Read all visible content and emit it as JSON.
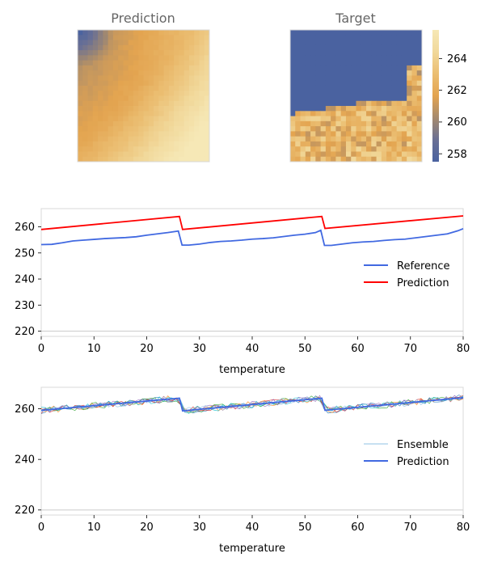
{
  "colors": {
    "reference": "#4169e1",
    "prediction_red": "#ff0000",
    "prediction_blue": "#4169e1",
    "ensemble": [
      "#1f77b4",
      "#ff7f0e",
      "#2ca02c",
      "#d62728",
      "#9467bd",
      "#17becf",
      "#8fc1e3"
    ],
    "colormap": [
      "#4a62a0",
      "#6a7094",
      "#a58a6e",
      "#e3a450",
      "#ebbe72",
      "#f1d89a",
      "#f6e8b6"
    ],
    "frame": "#d8d8d8",
    "baseline": "#cccccc"
  },
  "chart_data": [
    {
      "type": "heatmap",
      "title": "Prediction",
      "grid_size": 26,
      "value_range": [
        257.5,
        265.8
      ],
      "pattern": "smooth field, warm orange center, darker blue-grey in top-left corner, pale yellow toward right and bottom-right"
    },
    {
      "type": "heatmap",
      "title": "Target",
      "grid_size": 26,
      "value_range": [
        257.5,
        265.8
      ],
      "pattern": "large uniform blue region (~257.5) covering upper two-thirds, warm patchy orange/yellow values along bottom and right edges"
    },
    {
      "type": "colorbar",
      "ticks": [
        "258",
        "260",
        "262",
        "264"
      ],
      "range": [
        257.5,
        265.8
      ]
    },
    {
      "type": "line",
      "xlabel": "temperature",
      "ylabel": "",
      "xlim": [
        0,
        80
      ],
      "ylim": [
        218,
        267
      ],
      "xticks": [
        "0",
        "10",
        "20",
        "30",
        "40",
        "50",
        "60",
        "70",
        "80"
      ],
      "yticks": [
        "220",
        "230",
        "240",
        "250",
        "260"
      ],
      "series": [
        {
          "name": "Reference",
          "x": [
            0,
            2,
            4,
            6,
            8,
            10,
            12,
            14,
            16,
            18,
            20,
            22,
            24,
            26,
            26.7,
            28,
            30,
            32,
            34,
            36,
            38,
            40,
            42,
            44,
            46,
            48,
            50,
            52,
            53,
            53.7,
            55,
            57,
            59,
            61,
            63,
            65,
            67,
            69,
            71,
            73,
            75,
            77,
            79,
            80
          ],
          "y": [
            253.2,
            253.3,
            253.9,
            254.6,
            254.9,
            255.2,
            255.5,
            255.7,
            255.9,
            256.2,
            256.8,
            257.3,
            257.8,
            258.4,
            253.0,
            253.0,
            253.4,
            254.0,
            254.4,
            254.6,
            254.9,
            255.3,
            255.5,
            255.8,
            256.3,
            256.8,
            257.2,
            257.8,
            258.7,
            252.9,
            252.9,
            253.4,
            253.9,
            254.2,
            254.4,
            254.8,
            255.1,
            255.3,
            255.8,
            256.3,
            256.8,
            257.3,
            258.5,
            259.3
          ]
        },
        {
          "name": "Prediction",
          "x": [
            0,
            26.2,
            26.8,
            53.2,
            53.8,
            80
          ],
          "y": [
            259.0,
            264.0,
            259.0,
            264.0,
            259.4,
            264.2
          ]
        }
      ],
      "legend": "right"
    },
    {
      "type": "line",
      "xlabel": "temperature",
      "ylabel": "",
      "xlim": [
        0,
        80
      ],
      "ylim": [
        218,
        268.5
      ],
      "xticks": [
        "0",
        "10",
        "20",
        "30",
        "40",
        "50",
        "60",
        "70",
        "80"
      ],
      "yticks": [
        "220",
        "240",
        "260"
      ],
      "series": [
        {
          "name": "Ensemble",
          "members": 7,
          "description": "noisy thin member lines scattered around the prediction curve, spread about ±1.5",
          "x": [
            0,
            26.2,
            26.8,
            53.2,
            53.8,
            80
          ],
          "y": [
            259.4,
            264.2,
            259.2,
            264.2,
            259.4,
            264.4
          ]
        },
        {
          "name": "Prediction",
          "x": [
            0,
            26.2,
            26.8,
            53.2,
            53.8,
            80
          ],
          "y": [
            259.4,
            264.2,
            259.2,
            264.2,
            259.4,
            264.4
          ]
        }
      ],
      "legend": "right"
    }
  ]
}
